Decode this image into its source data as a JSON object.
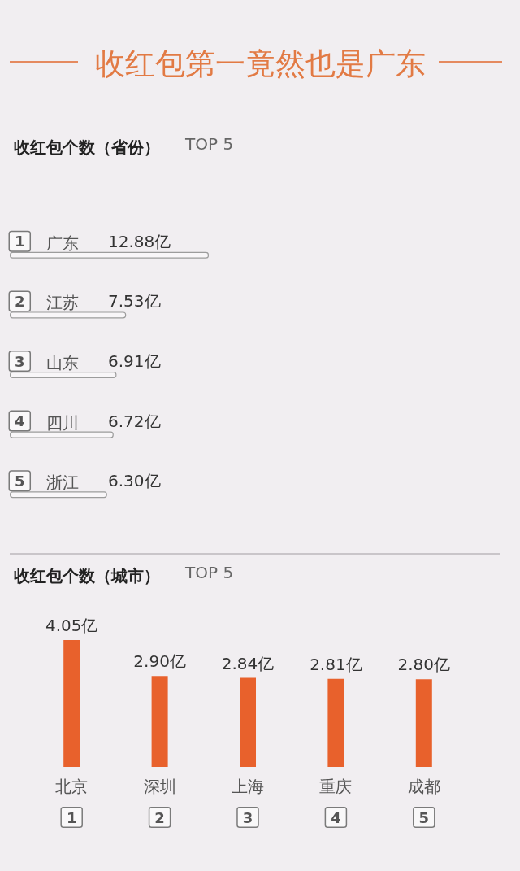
{
  "chart_data": [
    {
      "type": "bar",
      "orientation": "horizontal",
      "title": "收红包第一竟然也是广东",
      "subtitle": "收红包个数（省份）",
      "categories": [
        "广东",
        "江苏",
        "山东",
        "四川",
        "浙江"
      ],
      "values": [
        12.88,
        7.53,
        6.91,
        6.72,
        6.3
      ],
      "value_labels": [
        "12.88亿",
        "7.53亿",
        "6.91亿",
        "6.72亿",
        "6.30亿"
      ],
      "color": "#f8f6f8",
      "tick_labels": "y",
      "annotations": [
        "TOP 5",
        "1",
        "2",
        "3",
        "4",
        "5"
      ]
    },
    {
      "type": "bar",
      "subtitle": "收红包个数（城市）",
      "categories": [
        "北京",
        "深圳",
        "上海",
        "重庆",
        "成都"
      ],
      "values": [
        4.05,
        2.9,
        2.84,
        2.81,
        2.8
      ],
      "value_labels": [
        "4.05亿",
        "2.90亿",
        "2.84亿",
        "2.81亿",
        "2.80亿"
      ],
      "color": "#e8612c",
      "tick_labels": "x",
      "annotations": [
        "TOP 5",
        "1",
        "2",
        "3",
        "4",
        "5"
      ]
    }
  ]
}
